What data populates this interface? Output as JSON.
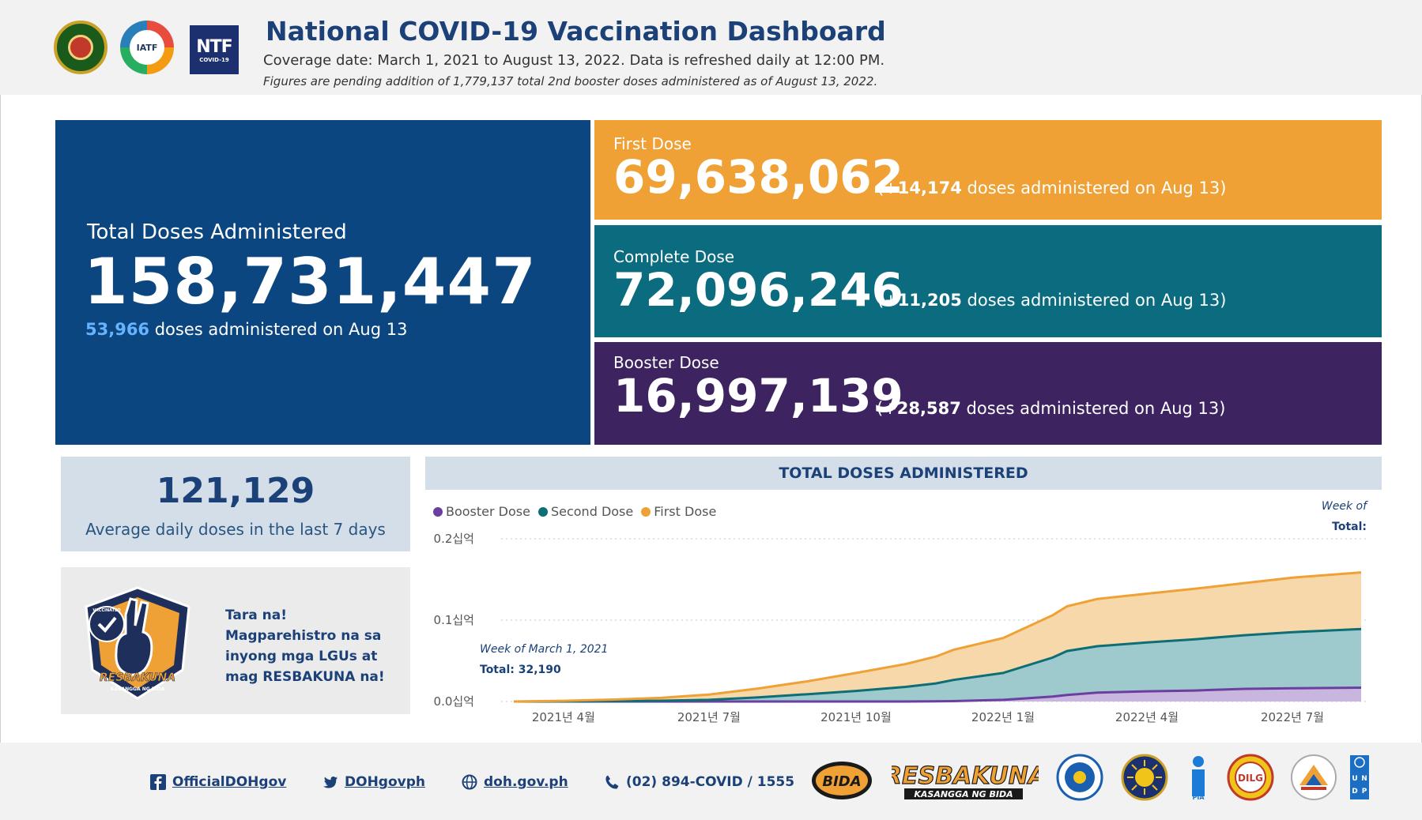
{
  "header": {
    "title": "National COVID-19 Vaccination Dashboard",
    "coverage": "Coverage date: March 1, 2021 to August 13, 2022. Data is refreshed daily at 12:00 PM.",
    "note": "Figures are pending addition of 1,779,137 total 2nd booster doses administered as of August 13, 2022.",
    "logos": {
      "iatf": "IATF",
      "ntf_big": "NTF",
      "ntf_small": "COVID-19"
    }
  },
  "total": {
    "label": "Total Doses Administered",
    "value": "158,731,447",
    "delta_value": "53,966",
    "delta_text": " doses administered on Aug 13"
  },
  "first_dose": {
    "label": "First Dose",
    "value": "69,638,062",
    "delta_prefix": "(+",
    "delta_value": "14,174",
    "delta_text": " doses administered on Aug 13)"
  },
  "complete_dose": {
    "label": "Complete Dose",
    "value": "72,096,246",
    "delta_prefix": "(+",
    "delta_value": "11,205",
    "delta_text": " doses administered on Aug 13)"
  },
  "booster_dose": {
    "label": "Booster Dose",
    "value": "16,997,139",
    "delta_prefix": "(+",
    "delta_value": "28,587",
    "delta_text": " doses administered on Aug 13)"
  },
  "average": {
    "value": "121,129",
    "label": "Average daily doses in the last 7 days"
  },
  "promo": {
    "text": "Tara na! Magparehistro na sa inyong mga LGUs at mag RESBAKUNA na!",
    "badge_top": "VACCINATED",
    "badge_brand": "RESBAKUNA",
    "badge_sub": "KASANGGA NG BIDA"
  },
  "chart_data": {
    "type": "area",
    "title": "TOTAL DOSES ADMINISTERED",
    "stacked": true,
    "x_ticks": [
      "2021년 4월",
      "2021년 7월",
      "2021년 10월",
      "2022년 1월",
      "2022년 4월",
      "2022년 7월"
    ],
    "y_ticks": [
      "0.0십억",
      "0.1십억",
      "0.2십억"
    ],
    "ylim": [
      0,
      200000000
    ],
    "legend": [
      "Booster Dose",
      "Second Dose",
      "First Dose"
    ],
    "x": [
      "2021-03-01",
      "2021-04-01",
      "2021-05-01",
      "2021-06-01",
      "2021-07-01",
      "2021-08-01",
      "2021-09-01",
      "2021-10-01",
      "2021-11-01",
      "2021-11-20",
      "2021-12-01",
      "2022-01-01",
      "2022-02-01",
      "2022-02-10",
      "2022-03-01",
      "2022-04-01",
      "2022-05-01",
      "2022-06-01",
      "2022-07-01",
      "2022-08-13"
    ],
    "series": [
      {
        "name": "Booster Dose",
        "color": "#6b3fa0",
        "values": [
          0,
          0,
          0,
          0,
          0,
          0,
          0,
          0,
          0,
          0.2,
          0.5,
          2,
          6,
          8,
          11,
          12.5,
          13.5,
          15.5,
          16.2,
          17
        ]
      },
      {
        "name": "Second Dose",
        "color": "#0d6e75",
        "values": [
          0,
          0.1,
          0.5,
          1,
          2,
          5,
          9,
          13,
          18,
          22,
          26,
          33,
          48,
          54,
          57,
          60,
          63,
          66,
          69,
          72
        ]
      },
      {
        "name": "First Dose",
        "color": "#f0a135",
        "values": [
          0.03,
          0.8,
          1.8,
          3.5,
          6.5,
          11,
          16,
          22,
          28,
          33,
          37,
          43,
          52,
          55,
          58,
          60,
          62,
          64,
          67,
          69.6
        ]
      }
    ],
    "tooltip_left": {
      "week": "Week of March 1, 2021",
      "total": "Total: 32,190"
    },
    "tooltip_right": {
      "week": "Week of",
      "total": "Total:"
    }
  },
  "footer": {
    "facebook": "OfficialDOHgov",
    "twitter": "DOHgovph",
    "website": "doh.gov.ph",
    "phone": "(02) 894-COVID / 1555",
    "logo_bida": "BIDA",
    "logo_resbakuna": "RESBAKUNA",
    "logo_resbakuna_sub": "KASANGGA NG BIDA",
    "logo_pia": "PIA",
    "logo_dilg": "DILG",
    "logo_undp": "UNDP"
  },
  "colors": {
    "navy": "#0b4680",
    "orange": "#f0a135",
    "teal": "#0b6c80",
    "purple": "#3d2460",
    "light_blue": "#66b3ff"
  }
}
